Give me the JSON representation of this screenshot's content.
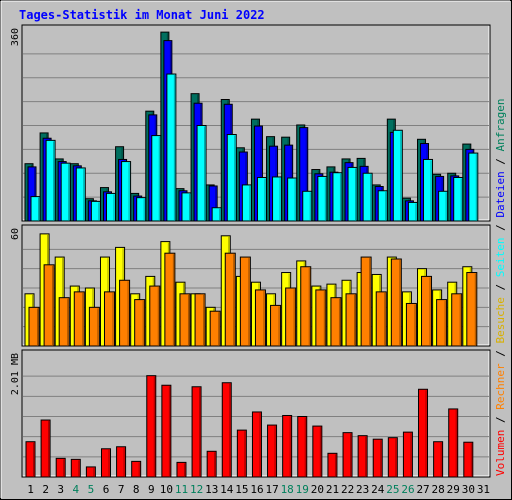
{
  "chart_data": {
    "type": "bar",
    "title": "Tages-Statistik im Monat Juni 2022",
    "categories": [
      "1",
      "2",
      "3",
      "4",
      "5",
      "6",
      "7",
      "8",
      "9",
      "10",
      "11",
      "12",
      "13",
      "14",
      "15",
      "16",
      "17",
      "18",
      "19",
      "20",
      "21",
      "22",
      "23",
      "24",
      "25",
      "26",
      "27",
      "28",
      "29",
      "30",
      "31"
    ],
    "weekend_categories": [
      "4",
      "5",
      "11",
      "12",
      "18",
      "19",
      "25",
      "26"
    ],
    "panels": [
      {
        "id": "hits",
        "ymax": 360,
        "ymax_label": "360",
        "series": [
          {
            "name": "Anfragen",
            "color": "#006f5f",
            "values": [
              108,
              166,
              117,
              108,
              42,
              63,
              140,
              52,
              207,
              356,
              61,
              240,
              68,
              229,
              138,
              192,
              159,
              158,
              181,
              97,
              102,
              117,
              118,
              68,
              192,
              43,
              154,
              88,
              90,
              145,
              0
            ]
          },
          {
            "name": "Dateien",
            "color": "#0000ff",
            "values": [
              102,
              156,
              112,
              104,
              38,
              55,
              116,
              47,
              200,
              340,
              57,
              222,
              66,
              220,
              130,
              179,
              141,
              143,
              176,
              89,
              92,
              110,
              103,
              65,
              167,
              38,
              146,
              84,
              85,
              135,
              0
            ]
          },
          {
            "name": "Seiten",
            "color": "#00ffff",
            "values": [
              46,
              152,
              109,
              100,
              37,
              52,
              112,
              44,
              161,
              277,
              53,
              180,
              25,
              163,
              68,
              82,
              83,
              81,
              56,
              84,
              91,
              101,
              90,
              57,
              171,
              35,
              116,
              56,
              82,
              128,
              0
            ]
          }
        ]
      },
      {
        "id": "visits",
        "ymax": 60,
        "ymax_label": "60",
        "series": [
          {
            "name": "Besuche",
            "color": "#ffff00",
            "values": [
              27,
              58,
              46,
              31,
              30,
              46,
              51,
              27,
              36,
              54,
              33,
              27,
              20,
              57,
              36,
              33,
              27,
              38,
              44,
              31,
              32,
              34,
              38,
              37,
              46,
              28,
              40,
              29,
              33,
              41,
              0
            ]
          },
          {
            "name": "Rechner",
            "color": "#ff8000",
            "values": [
              20,
              42,
              25,
              28,
              20,
              28,
              34,
              24,
              31,
              48,
              27,
              27,
              18,
              48,
              46,
              29,
              21,
              30,
              41,
              29,
              25,
              27,
              46,
              28,
              45,
              22,
              36,
              24,
              27,
              38,
              0
            ]
          }
        ]
      },
      {
        "id": "volume",
        "ymax": 2.4,
        "ymax_label": "2.01 MB",
        "series": [
          {
            "name": "Volumen",
            "color": "#ff0000",
            "values": [
              0.7,
              1.13,
              0.37,
              0.35,
              0.2,
              0.56,
              0.6,
              0.31,
              2.01,
              1.82,
              0.29,
              1.79,
              0.51,
              1.87,
              0.93,
              1.29,
              1.03,
              1.22,
              1.2,
              1.01,
              0.47,
              0.88,
              0.82,
              0.75,
              0.78,
              0.89,
              1.74,
              0.7,
              1.35,
              0.69,
              0
            ]
          }
        ]
      }
    ],
    "legend": [
      "Volumen",
      "Rechner",
      "Besuche",
      "Seiten",
      "Dateien",
      "Anfragen"
    ],
    "legend_separator": " / "
  },
  "colors": {
    "background": "#c0c0c0",
    "panel": "#c0c0c0",
    "grid": "#808080",
    "title": "#0000ff",
    "weekday_label": "#000000",
    "weekend_label": "#00805c"
  }
}
